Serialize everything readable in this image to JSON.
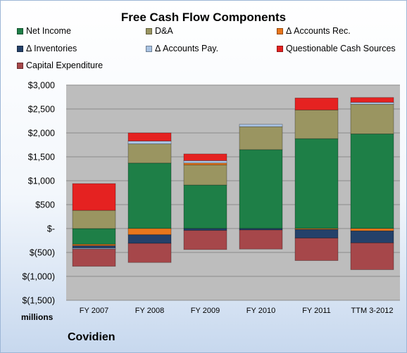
{
  "chart_data": {
    "type": "bar",
    "stacked": true,
    "title": "Free Cash Flow Components",
    "units_label": "millions",
    "company": "Covidien",
    "categories": [
      "FY 2007",
      "FY 2008",
      "FY 2009",
      "FY 2010",
      "FY 2011",
      "TTM 3-2012"
    ],
    "yticks": [
      "$3,000",
      "$2,500",
      "$2,000",
      "$1,500",
      "$1,000",
      "$500",
      "$-",
      "$(500)",
      "$(1,000)",
      "$(1,500)"
    ],
    "ylim": [
      -1500,
      3000
    ],
    "grid": true,
    "legend_position": "top",
    "series": [
      {
        "name": "Net Income",
        "color": "#1e7f47",
        "values": [
          -330,
          1370,
          910,
          1650,
          1880,
          1980
        ]
      },
      {
        "name": "D&A",
        "color": "#9a9561",
        "values": [
          380,
          400,
          420,
          480,
          600,
          620
        ]
      },
      {
        "name": "Δ Accounts Rec.",
        "color": "#e8761c",
        "values": [
          -30,
          -130,
          40,
          0,
          -20,
          -50
        ]
      },
      {
        "name": "Δ Inventories",
        "color": "#24416a",
        "values": [
          -50,
          -180,
          -40,
          -30,
          -180,
          -250
        ]
      },
      {
        "name": "Δ Accounts Pay.",
        "color": "#a9c3e3",
        "values": [
          -20,
          60,
          50,
          50,
          0,
          40
        ]
      },
      {
        "name": "Questionable Cash Sources",
        "color": "#e52221",
        "values": [
          560,
          170,
          140,
          0,
          250,
          100
        ]
      },
      {
        "name": "Capital Expenditure",
        "color": "#a6474a",
        "values": [
          -360,
          -400,
          -400,
          -400,
          -470,
          -560
        ]
      }
    ]
  }
}
